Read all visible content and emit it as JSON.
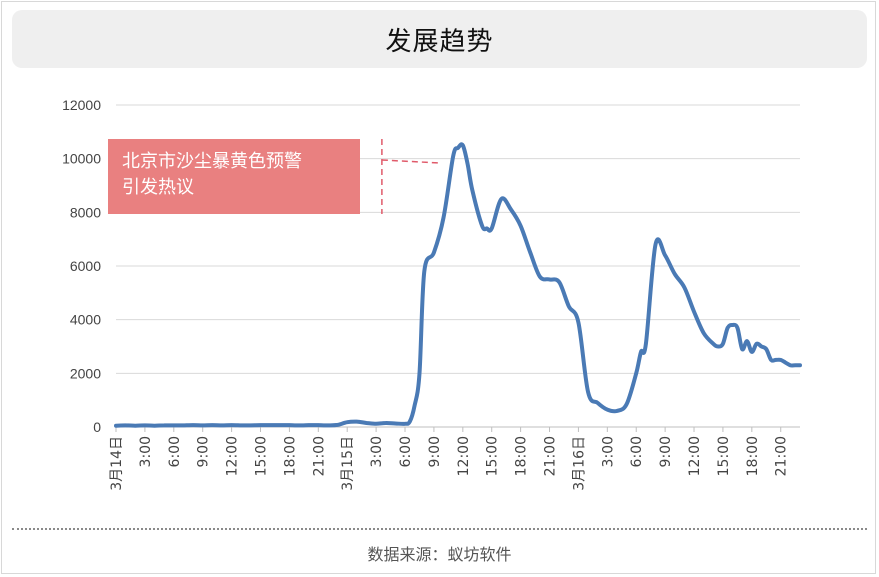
{
  "header": {
    "title": "发展趋势"
  },
  "footer": {
    "source": "数据来源：蚁坊软件"
  },
  "annotation": {
    "lines": [
      "北京市沙尘暴黄色预警",
      "引发热议"
    ],
    "fill": "#e98080"
  },
  "colors": {
    "line": "#4a7ab5",
    "grid": "#d9d9d9",
    "annotation_dash": "#e05a6a"
  },
  "chart_data": {
    "type": "line",
    "title": "发展趋势",
    "xlabel": "",
    "ylabel": "",
    "ylim": [
      0,
      12000
    ],
    "yticks": [
      0,
      2000,
      4000,
      6000,
      8000,
      10000,
      12000
    ],
    "ytick_labels": [
      "0",
      "2000",
      "4000",
      "6000",
      "8000",
      "10000",
      "12000"
    ],
    "xlim": [
      0,
      71
    ],
    "xticks": [
      {
        "hour": 0,
        "label": "3月14日"
      },
      {
        "hour": 3,
        "label": "3:00"
      },
      {
        "hour": 6,
        "label": "6:00"
      },
      {
        "hour": 9,
        "label": "9:00"
      },
      {
        "hour": 12,
        "label": "12:00"
      },
      {
        "hour": 15,
        "label": "15:00"
      },
      {
        "hour": 18,
        "label": "18:00"
      },
      {
        "hour": 21,
        "label": "21:00"
      },
      {
        "hour": 24,
        "label": "3月15日"
      },
      {
        "hour": 27,
        "label": "3:00"
      },
      {
        "hour": 30,
        "label": "6:00"
      },
      {
        "hour": 33,
        "label": "9:00"
      },
      {
        "hour": 36,
        "label": "12:00"
      },
      {
        "hour": 39,
        "label": "15:00"
      },
      {
        "hour": 42,
        "label": "18:00"
      },
      {
        "hour": 45,
        "label": "21:00"
      },
      {
        "hour": 48,
        "label": "3月16日"
      },
      {
        "hour": 51,
        "label": "3:00"
      },
      {
        "hour": 54,
        "label": "6:00"
      },
      {
        "hour": 57,
        "label": "9:00"
      },
      {
        "hour": 60,
        "label": "12:00"
      },
      {
        "hour": 63,
        "label": "15:00"
      },
      {
        "hour": 66,
        "label": "18:00"
      },
      {
        "hour": 69,
        "label": "21:00"
      }
    ],
    "grid": true,
    "legend": "none",
    "annotation_hour": 27.6,
    "series": [
      {
        "x": [
          0,
          1,
          2,
          3,
          4,
          5,
          6,
          7,
          8,
          9,
          10,
          11,
          12,
          13,
          14,
          15,
          16,
          17,
          18,
          19,
          20,
          21,
          22,
          23,
          24,
          25,
          26,
          27,
          28,
          29,
          30,
          30.5,
          31,
          31.5,
          32,
          33,
          34,
          35,
          35.5,
          36,
          36.5,
          37,
          38,
          38.5,
          39,
          40,
          41,
          42,
          43,
          44,
          45,
          46,
          47,
          48,
          49,
          50,
          51,
          52,
          53,
          54,
          54.5,
          55,
          56,
          57,
          58,
          59,
          60,
          61,
          62,
          62.5,
          63,
          63.5,
          64,
          64.5,
          65,
          65.5,
          66,
          66.5,
          67,
          67.5,
          68,
          68.5,
          69,
          69.5,
          70,
          70.5,
          71
        ],
        "y": [
          50,
          60,
          50,
          60,
          50,
          60,
          60,
          60,
          70,
          60,
          70,
          60,
          70,
          60,
          60,
          70,
          70,
          70,
          70,
          60,
          70,
          70,
          60,
          80,
          180,
          200,
          150,
          120,
          150,
          130,
          120,
          200,
          800,
          2000,
          5800,
          6500,
          7800,
          10100,
          10400,
          10500,
          9800,
          8800,
          7500,
          7400,
          7400,
          8500,
          8100,
          7500,
          6500,
          5600,
          5500,
          5400,
          4500,
          3900,
          1300,
          900,
          650,
          600,
          850,
          2000,
          2800,
          3100,
          6800,
          6400,
          5700,
          5200,
          4300,
          3500,
          3100,
          3000,
          3100,
          3700,
          3800,
          3700,
          2900,
          3200,
          2800,
          3100,
          3000,
          2900,
          2500,
          2500,
          2500,
          2400,
          2300,
          2300,
          2300
        ]
      }
    ]
  }
}
